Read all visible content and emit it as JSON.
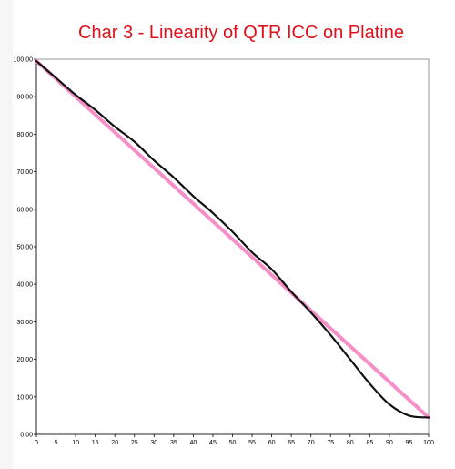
{
  "chart_data": {
    "type": "line",
    "title": "Char 3 - Linearity of QTR ICC on Platine",
    "xlabel": "",
    "ylabel": "",
    "xlim": [
      0,
      100
    ],
    "ylim": [
      0,
      100
    ],
    "x_ticks": [
      "0",
      "5",
      "10",
      "15",
      "20",
      "25",
      "30",
      "35",
      "40",
      "45",
      "50",
      "55",
      "60",
      "65",
      "70",
      "75",
      "80",
      "85",
      "90",
      "95",
      "100"
    ],
    "y_ticks": [
      "0.00",
      "10.00",
      "20.00",
      "30.00",
      "40.00",
      "50.00",
      "60.00",
      "70.00",
      "80.00",
      "90.00",
      "100.00"
    ],
    "grid": false,
    "legend": "none",
    "series": [
      {
        "color": "#f48fc8",
        "x": [
          0,
          100
        ],
        "values": [
          99.5,
          4.5
        ]
      },
      {
        "color": "#111111",
        "x": [
          0,
          5,
          10,
          15,
          20,
          25,
          30,
          35,
          40,
          45,
          50,
          55,
          60,
          65,
          70,
          75,
          80,
          85,
          90,
          95,
          100
        ],
        "values": [
          99.5,
          95,
          90.5,
          86.5,
          82,
          78,
          73,
          68.5,
          63.5,
          59,
          54,
          48.5,
          44,
          38,
          32.5,
          26.5,
          20,
          13.5,
          8,
          5,
          4.5
        ]
      }
    ],
    "title_color": "#e0101a"
  }
}
